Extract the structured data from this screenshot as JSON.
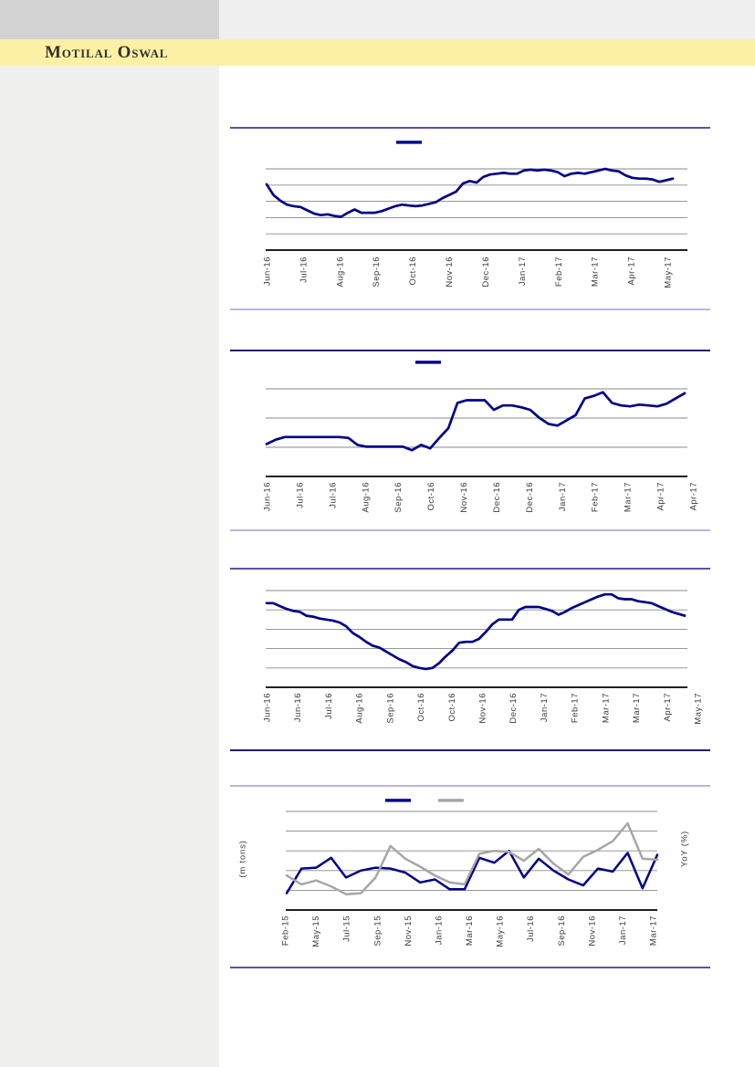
{
  "header": {
    "brand": "Motilal Oswal"
  },
  "colors": {
    "navy_line": "#00008B",
    "gray_line": "#A6A6A6",
    "gridline": "#8A8A8A",
    "axis": "#000000",
    "divider_dark": "#221C72",
    "divider_medium": "#5B51AD",
    "divider_light": "#A79ED2",
    "band_yellow": "#FBF0A4",
    "brand_text": "#31302A",
    "tick_label": "#3A3A3A",
    "sidebar_gray": "#F0F0EF",
    "logo_box_gray": "#D2D2D2",
    "top_strip_gray": "#EFEFEF"
  },
  "note": "Report page with four line charts; chart titles and y-axis tick values are not visible in the image, so series values are relative heights (0-100) of each plot area read from the pixels.",
  "chart_data": [
    {
      "type": "line",
      "x_labels": [
        "Jun-16",
        "Jul-16",
        "Aug-16",
        "Sep-16",
        "Oct-16",
        "Nov-16",
        "Dec-16",
        "Jan-17",
        "Feb-17",
        "Mar-17",
        "Apr-17",
        "May-17"
      ],
      "legend": [
        {
          "label": "",
          "color": "#00008B"
        }
      ],
      "gridlines": 5,
      "series": [
        {
          "name": "series-1",
          "color": "#00008B",
          "values": [
            81,
            68,
            61,
            56,
            54,
            53,
            49,
            45,
            43,
            44,
            42,
            41,
            46,
            50,
            46,
            46,
            46,
            48,
            51,
            54,
            56,
            55,
            54,
            55,
            57,
            59,
            64,
            68,
            72,
            82,
            85,
            83,
            90,
            93,
            94,
            95,
            94,
            94,
            98,
            99,
            98,
            99,
            98,
            96,
            91,
            94,
            95,
            94,
            96,
            98,
            100,
            98,
            97,
            92,
            89,
            88,
            88,
            87,
            84,
            86,
            88
          ]
        }
      ]
    },
    {
      "type": "line",
      "x_labels": [
        "Jun-16",
        "Jul-16",
        "Jul-16",
        "Aug-16",
        "Sep-16",
        "Oct-16",
        "Nov-16",
        "Dec-16",
        "Dec-16",
        "Jan-17",
        "Feb-17",
        "Mar-17",
        "Apr-17",
        "Apr-17"
      ],
      "legend": [
        {
          "label": "",
          "color": "#00008B"
        }
      ],
      "gridlines": 3,
      "series": [
        {
          "name": "series-1",
          "color": "#00008B",
          "values": [
            37,
            42,
            45,
            45,
            45,
            45,
            45,
            45,
            45,
            44,
            36,
            34,
            34,
            34,
            34,
            34,
            30,
            36,
            32,
            44,
            55,
            84,
            87,
            87,
            87,
            76,
            81,
            81,
            79,
            76,
            67,
            60,
            58,
            64,
            70,
            89,
            92,
            96,
            84,
            81,
            80,
            82,
            81,
            80,
            83,
            89,
            95
          ]
        }
      ]
    },
    {
      "type": "line",
      "x_labels": [
        "Jun-16",
        "Jun-16",
        "Jul-16",
        "Aug-16",
        "Sep-16",
        "Oct-16",
        "Oct-16",
        "Nov-16",
        "Dec-16",
        "Jan-17",
        "Feb-17",
        "Mar-17",
        "Mar-17",
        "Apr-17",
        "May-17"
      ],
      "legend": [],
      "gridlines": 5,
      "series": [
        {
          "name": "series-1",
          "color": "#00008B",
          "values": [
            87,
            87,
            84,
            81,
            79,
            78,
            74,
            73,
            71,
            70,
            69,
            67,
            63,
            56,
            52,
            47,
            43,
            41,
            37,
            33,
            29,
            26,
            22,
            20,
            19,
            20,
            25,
            32,
            38,
            46,
            47,
            47,
            50,
            57,
            65,
            70,
            70,
            70,
            80,
            83,
            83,
            83,
            81,
            79,
            75,
            78,
            82,
            85,
            88,
            91,
            94,
            96,
            96,
            92,
            91,
            91,
            89,
            88,
            87,
            84,
            81,
            78,
            76,
            74
          ]
        }
      ]
    },
    {
      "type": "line",
      "x_labels": [
        "Feb-15",
        "May-15",
        "Jul-15",
        "Sep-15",
        "Nov-15",
        "Jan-16",
        "Mar-16",
        "May-16",
        "Jul-16",
        "Sep-16",
        "Nov-16",
        "Jan-17",
        "Mar-17"
      ],
      "ylabel_left": "(m tons)",
      "ylabel_right": "YoY (%)",
      "legend": [
        {
          "label": "",
          "color": "#00008B"
        },
        {
          "label": "",
          "color": "#A6A6A6"
        }
      ],
      "gridlines": 5,
      "series": [
        {
          "name": "series-1",
          "color": "#00008B",
          "values": [
            17,
            42,
            43,
            53,
            33,
            40,
            43,
            42,
            38,
            28,
            31,
            21,
            21,
            53,
            48,
            60,
            33,
            52,
            40,
            31,
            25,
            42,
            39,
            58,
            22,
            56
          ]
        },
        {
          "name": "series-2",
          "color": "#A6A6A6",
          "values": [
            35,
            26,
            30,
            24,
            16,
            17,
            33,
            65,
            52,
            44,
            35,
            28,
            26,
            57,
            60,
            59,
            50,
            62,
            47,
            36,
            54,
            61,
            70,
            88,
            52,
            51
          ]
        }
      ]
    }
  ]
}
